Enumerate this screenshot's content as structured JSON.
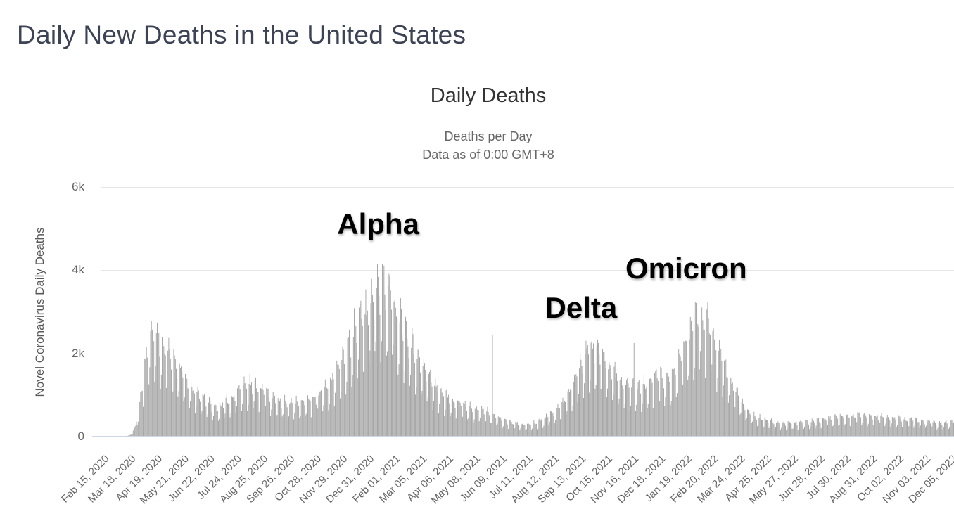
{
  "page": {
    "title": "Daily New Deaths in the United States"
  },
  "chart_data": {
    "type": "bar",
    "title": "Daily Deaths",
    "subtitle1": "Deaths per Day",
    "subtitle2": "Data as of 0:00 GMT+8",
    "ylabel": "Novel Coronavirus Daily Deaths",
    "xlabel": "",
    "series_name": "Daily Deaths",
    "ylim": [
      0,
      6000
    ],
    "grid": true,
    "yticks": [
      {
        "value": 0,
        "label": "0"
      },
      {
        "value": 2000,
        "label": "2k"
      },
      {
        "value": 4000,
        "label": "4k"
      },
      {
        "value": 6000,
        "label": "6k"
      }
    ],
    "x_start_date": "Feb 15, 2020",
    "x_end_date": "Dec 10, 2022",
    "n_days": 1030,
    "x_tick_interval_days": 32,
    "x_tick_labels": [
      "Feb 15, 2020",
      "Mar 18, 2020",
      "Apr 19, 2020",
      "May 21, 2020",
      "Jun 22, 2020",
      "Jul 24, 2020",
      "Aug 25, 2020",
      "Sep 26, 2020",
      "Oct 28, 2020",
      "Nov 29, 2020",
      "Dec 31, 2020",
      "Feb 01, 2021",
      "Mar 05, 2021",
      "Apr 06, 2021",
      "May 08, 2021",
      "Jun 09, 2021",
      "Jul 11, 2021",
      "Aug 12, 2021",
      "Sep 13, 2021",
      "Oct 15, 2021",
      "Nov 16, 2021",
      "Dec 18, 2021",
      "Jan 19, 2022",
      "Feb 20, 2022",
      "Mar 24, 2022",
      "Apr 25, 2022",
      "May 27, 2022",
      "Jun 28, 2022",
      "Jul 30, 2022",
      "Aug 31, 2022",
      "Oct 02, 2022",
      "Nov 03, 2022",
      "Dec 05, 2022"
    ],
    "bar_color": "#9a9a9a",
    "grid_color": "#e6e6e6",
    "axis_line_color": "#ccd6eb",
    "envelope_7day_avg": [
      [
        0,
        0
      ],
      [
        20,
        1
      ],
      [
        28,
        4
      ],
      [
        34,
        30
      ],
      [
        40,
        170
      ],
      [
        45,
        600
      ],
      [
        50,
        1250
      ],
      [
        55,
        1900
      ],
      [
        60,
        2250
      ],
      [
        65,
        2230
      ],
      [
        70,
        2100
      ],
      [
        76,
        1850
      ],
      [
        83,
        1730
      ],
      [
        90,
        1600
      ],
      [
        97,
        1380
      ],
      [
        104,
        1150
      ],
      [
        111,
        980
      ],
      [
        118,
        900
      ],
      [
        125,
        820
      ],
      [
        131,
        700
      ],
      [
        137,
        620
      ],
      [
        143,
        640
      ],
      [
        150,
        730
      ],
      [
        157,
        820
      ],
      [
        164,
        1000
      ],
      [
        171,
        1120
      ],
      [
        178,
        1150
      ],
      [
        185,
        1090
      ],
      [
        192,
        1020
      ],
      [
        199,
        950
      ],
      [
        206,
        870
      ],
      [
        213,
        780
      ],
      [
        220,
        740
      ],
      [
        227,
        720
      ],
      [
        234,
        740
      ],
      [
        241,
        760
      ],
      [
        248,
        790
      ],
      [
        255,
        820
      ],
      [
        262,
        900
      ],
      [
        269,
        1030
      ],
      [
        276,
        1200
      ],
      [
        283,
        1380
      ],
      [
        290,
        1620
      ],
      [
        297,
        1900
      ],
      [
        304,
        2250
      ],
      [
        311,
        2500
      ],
      [
        318,
        2600
      ],
      [
        325,
        2900
      ],
      [
        332,
        3300
      ],
      [
        339,
        3250
      ],
      [
        346,
        3150
      ],
      [
        353,
        2950
      ],
      [
        360,
        2550
      ],
      [
        367,
        2300
      ],
      [
        374,
        2000
      ],
      [
        381,
        1750
      ],
      [
        388,
        1500
      ],
      [
        395,
        1300
      ],
      [
        402,
        1120
      ],
      [
        409,
        980
      ],
      [
        416,
        880
      ],
      [
        423,
        800
      ],
      [
        430,
        740
      ],
      [
        437,
        700
      ],
      [
        444,
        660
      ],
      [
        451,
        620
      ],
      [
        458,
        580
      ],
      [
        465,
        540
      ],
      [
        472,
        480
      ],
      [
        479,
        410
      ],
      [
        486,
        350
      ],
      [
        493,
        310
      ],
      [
        500,
        280
      ],
      [
        507,
        260
      ],
      [
        514,
        265
      ],
      [
        521,
        280
      ],
      [
        528,
        330
      ],
      [
        535,
        400
      ],
      [
        542,
        500
      ],
      [
        549,
        580
      ],
      [
        556,
        700
      ],
      [
        563,
        900
      ],
      [
        570,
        1150
      ],
      [
        577,
        1500
      ],
      [
        584,
        1800
      ],
      [
        591,
        1950
      ],
      [
        598,
        1870
      ],
      [
        605,
        1700
      ],
      [
        612,
        1520
      ],
      [
        619,
        1380
      ],
      [
        626,
        1230
      ],
      [
        633,
        1150
      ],
      [
        640,
        1100
      ],
      [
        647,
        1060
      ],
      [
        654,
        1080
      ],
      [
        661,
        1150
      ],
      [
        668,
        1240
      ],
      [
        675,
        1300
      ],
      [
        682,
        1260
      ],
      [
        689,
        1300
      ],
      [
        696,
        1500
      ],
      [
        703,
        1880
      ],
      [
        710,
        2200
      ],
      [
        717,
        2500
      ],
      [
        723,
        2620
      ],
      [
        729,
        2550
      ],
      [
        735,
        2400
      ],
      [
        741,
        2080
      ],
      [
        747,
        1800
      ],
      [
        753,
        1500
      ],
      [
        759,
        1250
      ],
      [
        765,
        1020
      ],
      [
        771,
        820
      ],
      [
        777,
        650
      ],
      [
        784,
        520
      ],
      [
        791,
        430
      ],
      [
        798,
        380
      ],
      [
        806,
        330
      ],
      [
        815,
        300
      ],
      [
        824,
        290
      ],
      [
        834,
        295
      ],
      [
        844,
        305
      ],
      [
        854,
        320
      ],
      [
        864,
        340
      ],
      [
        874,
        375
      ],
      [
        884,
        400
      ],
      [
        894,
        425
      ],
      [
        904,
        445
      ],
      [
        914,
        460
      ],
      [
        924,
        450
      ],
      [
        934,
        435
      ],
      [
        944,
        420
      ],
      [
        954,
        400
      ],
      [
        964,
        385
      ],
      [
        974,
        370
      ],
      [
        984,
        355
      ],
      [
        994,
        335
      ],
      [
        1004,
        320
      ],
      [
        1014,
        305
      ],
      [
        1022,
        305
      ],
      [
        1029,
        320
      ]
    ],
    "weekly_reporting_pattern_start": "Saturday",
    "weekly_reporting_pattern": [
      0.98,
      0.6,
      0.72,
      1.18,
      1.24,
      1.18,
      1.1
    ],
    "single_day_spikes": [
      {
        "day": 472,
        "value": 2450
      },
      {
        "day": 643,
        "value": 2250
      }
    ],
    "annotations": [
      {
        "label": "Alpha",
        "day": 334,
        "value": 5100
      },
      {
        "label": "Delta",
        "day": 579,
        "value": 3100
      },
      {
        "label": "Omicron",
        "day": 706,
        "value": 4040
      }
    ]
  }
}
